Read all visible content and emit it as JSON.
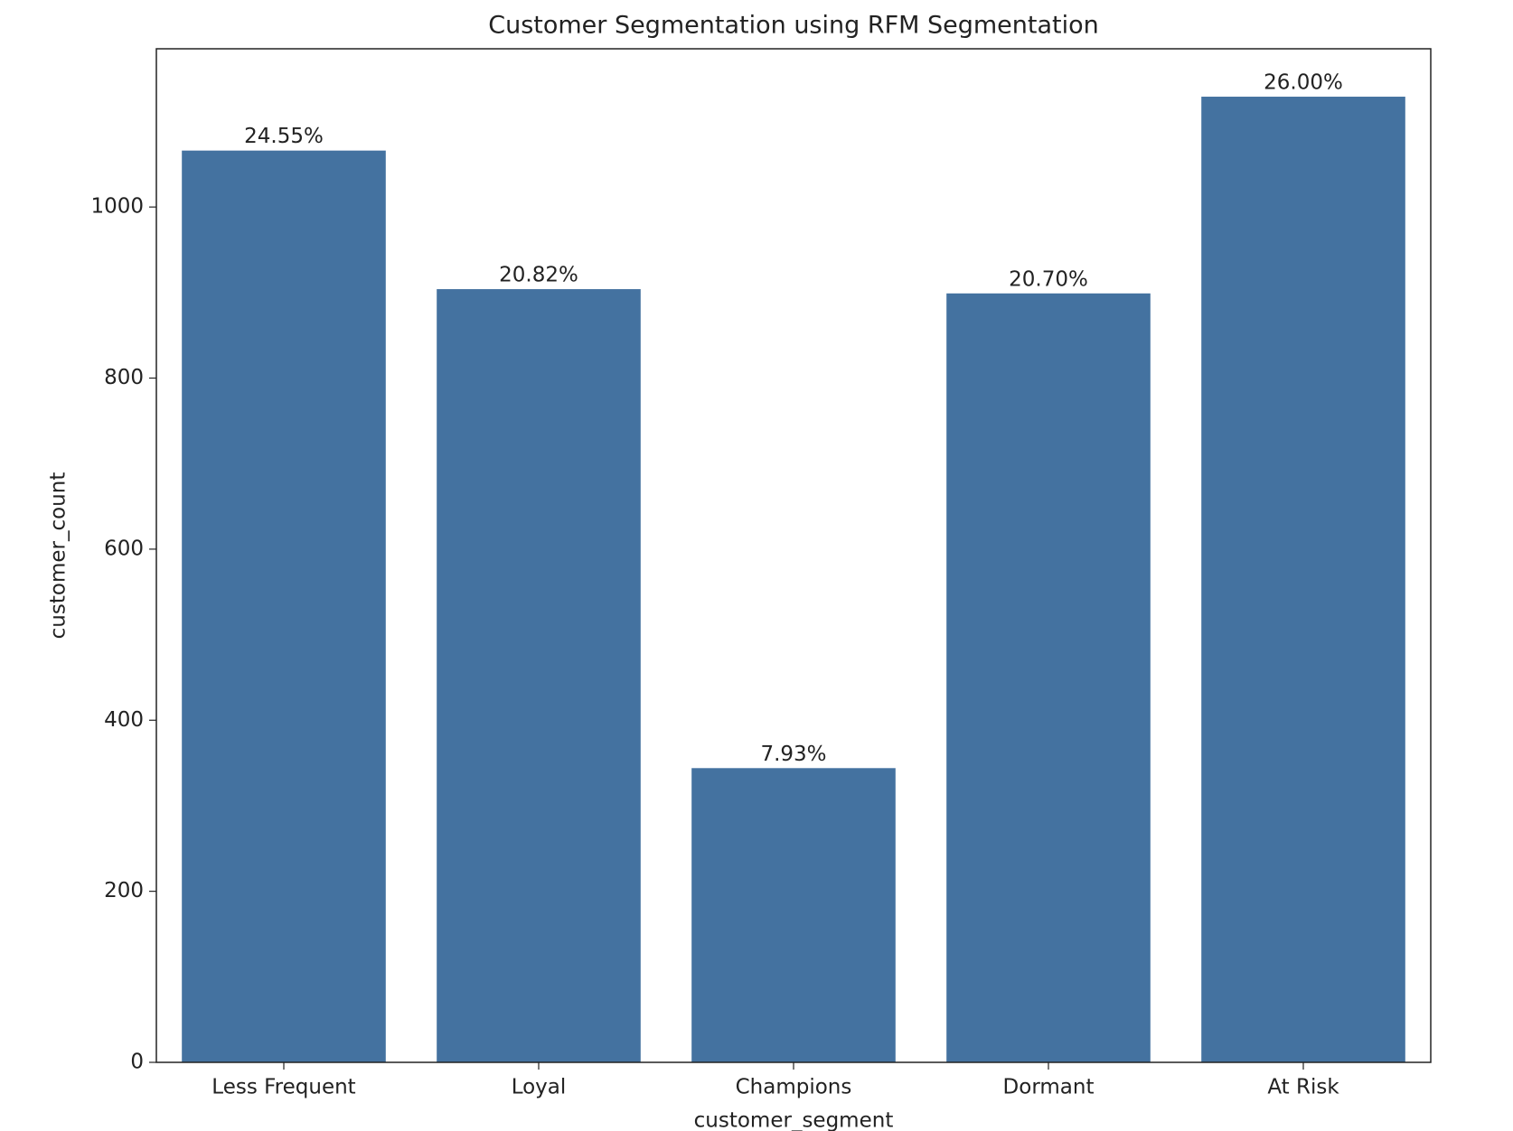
{
  "chart_data": {
    "type": "bar",
    "title": "Customer Segmentation using RFM Segmentation",
    "x_label": "customer_segment",
    "y_label": "customer_count",
    "categories": [
      "Less Frequent",
      "Loyal",
      "Champions",
      "Dormant",
      "At Risk"
    ],
    "values": [
      1066,
      904,
      344,
      899,
      1129
    ],
    "percent_labels": [
      "24.55%",
      "20.82%",
      "7.93%",
      "20.70%",
      "26.00%"
    ],
    "color": "#4472a0",
    "ylim": [
      0,
      1185
    ],
    "yticks": [
      0,
      200,
      400,
      600,
      800,
      1000
    ],
    "grid": false
  }
}
